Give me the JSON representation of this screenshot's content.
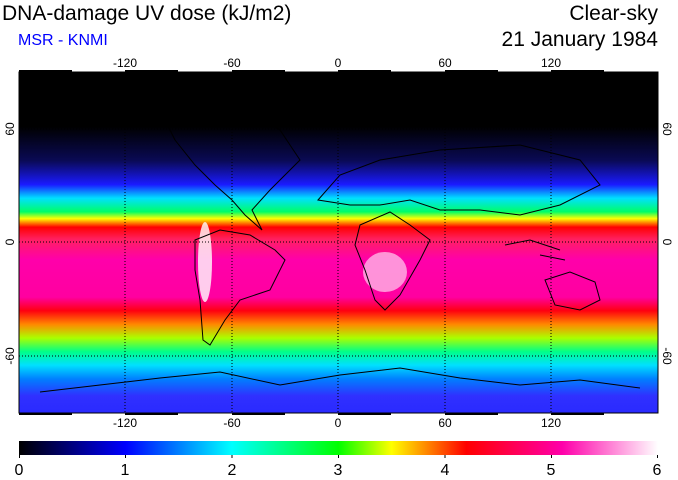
{
  "header": {
    "title": "DNA-damage UV dose (kJ/m2)",
    "subtitle": "MSR - KNMI",
    "sky_condition": "Clear-sky",
    "date": "21 January 1984"
  },
  "colors": {
    "subtitle": "#0000ff",
    "scale": [
      "#000000",
      "#0000ff",
      "#00ffff",
      "#00ff00",
      "#ffff00",
      "#ff0000",
      "#ff00aa",
      "#ffffff"
    ]
  },
  "map": {
    "projection": "equirectangular",
    "lon_range": [
      -180,
      180
    ],
    "lat_range": [
      -90,
      90
    ],
    "lon_ticks": [
      -120,
      -60,
      0,
      60,
      120
    ],
    "lat_ticks": [
      60,
      0,
      -60
    ],
    "grid": "dotted"
  },
  "colorbar": {
    "min": 0,
    "max": 6,
    "ticks": [
      "0",
      "1",
      "2",
      "3",
      "4",
      "5",
      "6"
    ]
  }
}
